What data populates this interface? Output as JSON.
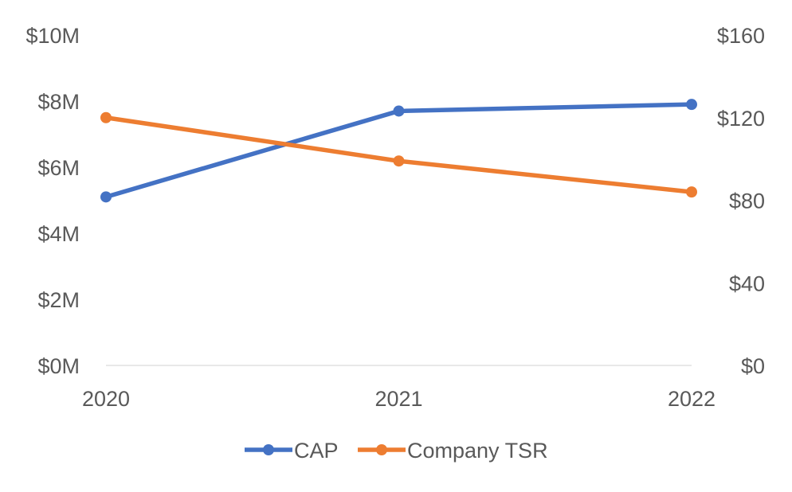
{
  "chart_data": {
    "type": "line",
    "categories": [
      "2020",
      "2021",
      "2022"
    ],
    "series": [
      {
        "name": "CAP",
        "axis": "left",
        "color": "#4472C4",
        "values": [
          5.1,
          7.7,
          7.9
        ]
      },
      {
        "name": "Company TSR",
        "axis": "right",
        "color": "#ED7D31",
        "values": [
          120,
          99,
          84
        ]
      }
    ],
    "y_left": {
      "ylim": [
        0,
        10
      ],
      "tick_values": [
        0,
        2,
        4,
        6,
        8,
        10
      ],
      "tick_labels": [
        "$0M",
        "$2M",
        "$4M",
        "$6M",
        "$8M",
        "$10M"
      ]
    },
    "y_right": {
      "ylim": [
        0,
        160
      ],
      "tick_values": [
        0,
        40,
        80,
        120,
        160
      ],
      "tick_labels": [
        "$0",
        "$40",
        "$80",
        "$120",
        "$160"
      ]
    },
    "x_tick_labels": [
      "2020",
      "2021",
      "2022"
    ],
    "grid": false,
    "legend": {
      "position": "bottom",
      "entries": [
        "CAP",
        "Company TSR"
      ]
    },
    "title": "",
    "xlabel": "",
    "ylabel": ""
  }
}
